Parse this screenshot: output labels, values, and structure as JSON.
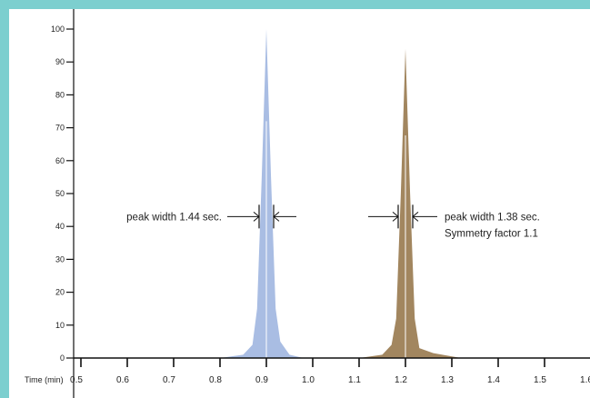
{
  "colors": {
    "frame": "#7ccfcf",
    "peak1": "#a9bde3",
    "peak2": "#a2865f",
    "axis": "#111111"
  },
  "chart_data": {
    "type": "line",
    "xlabel": "Time (min)",
    "ylabel": "",
    "xlim": [
      0.42,
      1.6
    ],
    "ylim": [
      0,
      100
    ],
    "yticks": [
      0,
      10,
      20,
      30,
      40,
      50,
      60,
      70,
      80,
      90,
      100
    ],
    "xticks": [
      "0.5",
      "0.6",
      "0.7",
      "0.8",
      "0.9",
      "1.0",
      "1.1",
      "1.2",
      "1.3",
      "1.4",
      "1.5",
      "1.6"
    ],
    "grid": false,
    "series": [
      {
        "color": "#a9bde3",
        "peak_time": 0.9,
        "peak_height": 100,
        "x": [
          0.8,
          0.85,
          0.87,
          0.88,
          0.89,
          0.9,
          0.91,
          0.92,
          0.93,
          0.95,
          0.98
        ],
        "y": [
          0,
          1,
          4,
          15,
          55,
          100,
          55,
          15,
          5,
          1,
          0
        ]
      },
      {
        "color": "#a2865f",
        "peak_time": 1.2,
        "peak_height": 94,
        "x": [
          1.1,
          1.15,
          1.17,
          1.18,
          1.19,
          1.2,
          1.21,
          1.22,
          1.23,
          1.26,
          1.32
        ],
        "y": [
          0,
          1,
          4,
          12,
          50,
          94,
          50,
          12,
          3,
          1.5,
          0
        ]
      }
    ],
    "annotations": [
      {
        "text": "peak width 1.44 sec.",
        "x": 0.9,
        "y": 43
      },
      {
        "text": "peak width 1.38 sec.",
        "x": 1.2,
        "y": 43
      },
      {
        "text": "Symmetry factor 1.1",
        "x": 1.2,
        "y": 38
      }
    ]
  }
}
